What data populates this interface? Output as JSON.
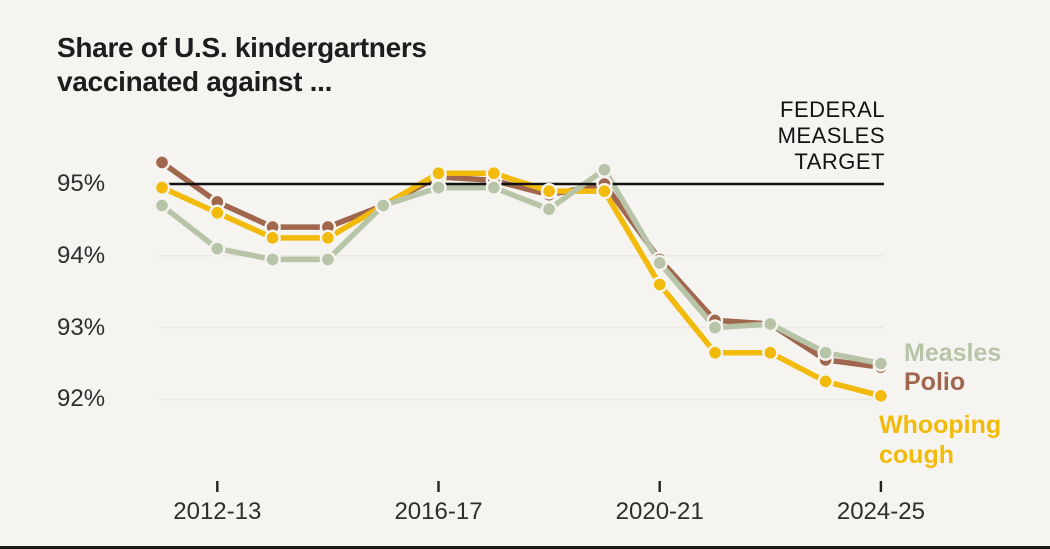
{
  "chart_data": {
    "type": "line",
    "title_lines": [
      "Share of U.S. kindergartners",
      "vaccinated against ..."
    ],
    "x": [
      "2011-12",
      "2012-13",
      "2013-14",
      "2014-15",
      "2015-16",
      "2016-17",
      "2017-18",
      "2018-19",
      "2019-20",
      "2020-21",
      "2021-22",
      "2022-23",
      "2023-24",
      "2024-25"
    ],
    "x_tick_indices": [
      1,
      5,
      9,
      13
    ],
    "x_tick_labels": [
      "2012-13",
      "2016-17",
      "2020-21",
      "2024-25"
    ],
    "y_tick_labels": [
      "95%",
      "94%",
      "93%",
      "92%"
    ],
    "y_tick_values": [
      95,
      94,
      93,
      92
    ],
    "gridline_values": [
      94,
      93,
      92
    ],
    "ylim": [
      91.5,
      95.7
    ],
    "grid_color": "#e9e8e4",
    "tick_color": "#222222",
    "background_color": "#f5f4f1",
    "target_line": {
      "value": 95,
      "color": "#111111",
      "label_lines": [
        "FEDERAL",
        "MEASLES",
        "TARGET"
      ]
    },
    "series": [
      {
        "name": "Polio",
        "key": "polio",
        "color": "#a1664e",
        "values": [
          95.3,
          94.75,
          94.4,
          94.4,
          94.7,
          95.1,
          95.05,
          94.85,
          95.0,
          93.95,
          93.1,
          93.05,
          92.55,
          92.45
        ]
      },
      {
        "name": "Whooping cough",
        "key": "whooping-cough",
        "color": "#f2ba0a",
        "values": [
          94.95,
          94.6,
          94.25,
          94.25,
          94.7,
          95.15,
          95.15,
          94.9,
          94.9,
          93.6,
          92.65,
          92.65,
          92.25,
          92.05
        ]
      },
      {
        "name": "Measles",
        "key": "measles",
        "color": "#b7c4a8",
        "values": [
          94.7,
          94.1,
          93.95,
          93.95,
          94.7,
          94.95,
          94.95,
          94.65,
          95.2,
          93.9,
          93.0,
          93.05,
          92.65,
          92.5
        ]
      }
    ],
    "legend_whooping_lines": [
      "Whooping",
      "cough"
    ]
  }
}
